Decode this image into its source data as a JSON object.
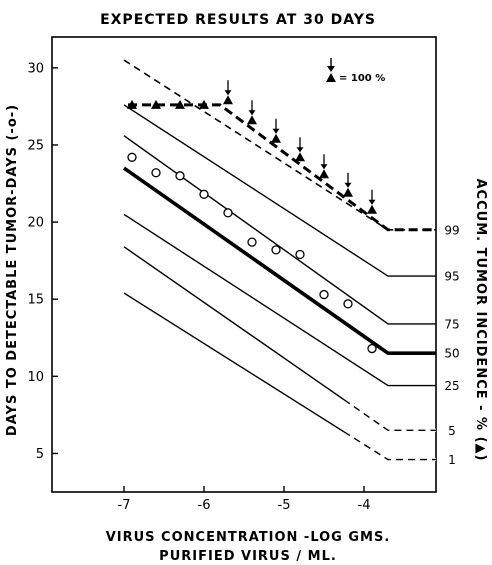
{
  "chart_data": {
    "type": "line",
    "title": "EXPECTED RESULTS AT 30 DAYS",
    "xlabel_line1": "VIRUS CONCENTRATION -LOG GMS.",
    "xlabel_line2": "PURIFIED VIRUS / ML.",
    "ylabel": "DAYS TO DETECTABLE TUMOR-DAYS (-o-)",
    "ylabel_right": "ACCUM. TUMOR INCIDENCE - % (▲)",
    "legend_text": "= 100 %",
    "xlim": [
      -7.9,
      -3.1
    ],
    "ylim": [
      2.5,
      32
    ],
    "x_ticks": [
      -7,
      -6,
      -5,
      -4
    ],
    "x_tick_labels": [
      "-7",
      "-6",
      "-5",
      "-4"
    ],
    "y_ticks": [
      5,
      10,
      15,
      20,
      25,
      30
    ],
    "y_tick_labels": [
      "5",
      "10",
      "15",
      "20",
      "25",
      "30"
    ],
    "observed_points": [
      {
        "x": -6.9,
        "y": 24.2
      },
      {
        "x": -6.6,
        "y": 23.2
      },
      {
        "x": -6.3,
        "y": 23.0
      },
      {
        "x": -6.0,
        "y": 21.8
      },
      {
        "x": -5.7,
        "y": 20.6
      },
      {
        "x": -5.4,
        "y": 18.7
      },
      {
        "x": -5.1,
        "y": 18.2
      },
      {
        "x": -4.8,
        "y": 17.9
      },
      {
        "x": -4.5,
        "y": 15.3
      },
      {
        "x": -4.2,
        "y": 14.7
      },
      {
        "x": -3.9,
        "y": 11.8
      }
    ],
    "incidence_lines": [
      {
        "label": "99",
        "style": "dashed",
        "y_start": 30.5,
        "y_plateau": 19.5
      },
      {
        "label": "95",
        "style": "thin",
        "y_start": 27.6,
        "y_plateau": 16.5
      },
      {
        "label": "75",
        "style": "thin",
        "y_start": 25.6,
        "y_plateau": 13.4
      },
      {
        "label": "50",
        "style": "bold",
        "y_start": 23.5,
        "y_plateau": 11.5
      },
      {
        "label": "25",
        "style": "thin",
        "y_start": 20.5,
        "y_plateau": 9.4
      },
      {
        "label": "5",
        "style": "thin",
        "y_start": 18.4,
        "y_plateau": 6.5
      },
      {
        "label": "1",
        "style": "thin",
        "y_start": 15.4,
        "y_plateau": 4.6
      }
    ],
    "right_labels": [
      {
        "text": "99",
        "y": 19.5
      },
      {
        "text": "95",
        "y": 16.5
      },
      {
        "text": "75",
        "y": 13.4
      },
      {
        "text": "50",
        "y": 11.5
      },
      {
        "text": "25",
        "y": 9.4
      },
      {
        "text": "5",
        "y": 6.5
      },
      {
        "text": "1",
        "y": 4.6
      }
    ],
    "incidence_points": [
      {
        "x": -6.9,
        "y": 27.6
      },
      {
        "x": -6.6,
        "y": 27.6
      },
      {
        "x": -6.3,
        "y": 27.6
      },
      {
        "x": -6.0,
        "y": 27.6
      },
      {
        "x": -5.7,
        "y": 27.9
      },
      {
        "x": -5.4,
        "y": 26.6
      },
      {
        "x": -5.1,
        "y": 25.4
      },
      {
        "x": -4.8,
        "y": 24.2
      },
      {
        "x": -4.5,
        "y": 23.1
      },
      {
        "x": -4.2,
        "y": 21.9
      },
      {
        "x": -3.9,
        "y": 20.8
      }
    ],
    "incidence_100_arrows_x": [
      -5.7,
      -5.4,
      -5.1,
      -4.8,
      -4.5,
      -4.2,
      -3.9
    ]
  }
}
